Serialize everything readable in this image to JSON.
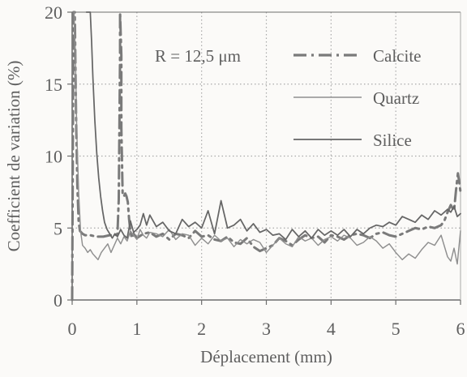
{
  "colors": {
    "background": "#fbfaf8",
    "axis": "#6d6d6d",
    "grid": "#a9a9a9",
    "calcite": "#7a7a7a",
    "quartz": "#8f8f8f",
    "silice": "#666666",
    "text": "#5e5e5e"
  },
  "chart_data": {
    "type": "line",
    "title": "",
    "xlabel": "Déplacement (mm)",
    "ylabel": "Coefficient de variation (%)",
    "xlim": [
      0,
      6
    ],
    "ylim": [
      0,
      20
    ],
    "x_ticks": [
      "0",
      "1",
      "2",
      "3",
      "4",
      "5",
      "6"
    ],
    "y_ticks": [
      "0",
      "5",
      "10",
      "15",
      "20"
    ],
    "annotation": "R = 12,5 μm",
    "grid": true,
    "legend_position": "upper-right",
    "series": [
      {
        "name": "Calcite",
        "style": "dash-dot",
        "x": [
          0.0,
          0.02,
          0.04,
          0.06,
          0.08,
          0.1,
          0.12,
          0.16,
          0.2,
          0.28,
          0.38,
          0.48,
          0.58,
          0.66,
          0.7,
          0.72,
          0.73,
          0.74,
          0.74,
          0.76,
          0.76,
          0.78,
          0.8,
          0.82,
          0.84,
          0.86,
          0.88,
          0.9,
          0.92,
          0.95,
          1.0,
          1.1,
          1.2,
          1.3,
          1.4,
          1.5,
          1.6,
          1.7,
          1.8,
          1.9,
          2.0,
          2.1,
          2.2,
          2.3,
          2.4,
          2.5,
          2.6,
          2.7,
          2.8,
          2.9,
          3.0,
          3.1,
          3.2,
          3.3,
          3.4,
          3.5,
          3.6,
          3.7,
          3.8,
          3.9,
          4.0,
          4.1,
          4.2,
          4.3,
          4.4,
          4.5,
          4.6,
          4.7,
          4.8,
          4.9,
          5.0,
          5.1,
          5.2,
          5.3,
          5.4,
          5.5,
          5.6,
          5.7,
          5.75,
          5.8,
          5.85,
          5.9,
          5.93,
          5.96,
          5.98,
          6.0
        ],
        "y": [
          0.0,
          20.0,
          20.0,
          13.0,
          8.0,
          5.5,
          4.8,
          4.6,
          4.5,
          4.5,
          4.4,
          4.4,
          4.5,
          4.5,
          4.6,
          7.0,
          12.0,
          17.0,
          20.0,
          17.0,
          12.0,
          7.3,
          7.2,
          7.4,
          7.2,
          6.8,
          5.6,
          4.8,
          4.3,
          4.6,
          4.3,
          4.6,
          4.7,
          4.4,
          4.6,
          4.2,
          4.6,
          4.5,
          4.3,
          4.8,
          4.4,
          4.5,
          4.2,
          4.1,
          4.4,
          4.0,
          3.9,
          4.3,
          3.7,
          3.4,
          3.6,
          3.8,
          4.3,
          4.1,
          3.8,
          4.2,
          4.5,
          4.3,
          4.4,
          4.0,
          4.5,
          4.4,
          4.2,
          4.5,
          4.6,
          4.5,
          4.3,
          4.6,
          4.7,
          4.5,
          4.4,
          4.6,
          4.8,
          5.0,
          4.9,
          5.1,
          5.0,
          5.2,
          5.5,
          6.1,
          6.6,
          6.2,
          7.6,
          8.8,
          8.2,
          7.5
        ]
      },
      {
        "name": "Quartz",
        "style": "solid",
        "x": [
          0.03,
          0.05,
          0.07,
          0.1,
          0.13,
          0.16,
          0.2,
          0.24,
          0.28,
          0.32,
          0.36,
          0.4,
          0.45,
          0.5,
          0.55,
          0.6,
          0.65,
          0.7,
          0.75,
          0.8,
          0.85,
          0.9,
          0.95,
          1.0,
          1.05,
          1.1,
          1.15,
          1.2,
          1.3,
          1.4,
          1.5,
          1.6,
          1.7,
          1.8,
          1.9,
          2.0,
          2.1,
          2.2,
          2.3,
          2.4,
          2.5,
          2.6,
          2.7,
          2.8,
          2.9,
          3.0,
          3.1,
          3.2,
          3.3,
          3.4,
          3.5,
          3.6,
          3.7,
          3.8,
          3.9,
          4.0,
          4.1,
          4.2,
          4.3,
          4.4,
          4.5,
          4.6,
          4.7,
          4.8,
          4.9,
          5.0,
          5.1,
          5.2,
          5.3,
          5.4,
          5.5,
          5.6,
          5.7,
          5.8,
          5.85,
          5.9,
          5.95,
          6.0
        ],
        "y": [
          20.0,
          17.0,
          12.0,
          7.5,
          4.8,
          3.8,
          3.6,
          3.3,
          3.5,
          3.2,
          3.0,
          2.8,
          3.3,
          3.6,
          3.9,
          3.3,
          3.8,
          4.3,
          3.9,
          4.4,
          4.1,
          4.8,
          4.5,
          4.2,
          4.9,
          4.5,
          4.3,
          4.7,
          4.6,
          4.4,
          4.9,
          4.2,
          4.6,
          4.5,
          3.8,
          4.3,
          3.9,
          4.5,
          4.1,
          4.3,
          3.7,
          4.2,
          3.9,
          4.2,
          4.0,
          3.3,
          3.8,
          4.3,
          3.9,
          3.7,
          4.4,
          4.1,
          4.3,
          3.8,
          4.2,
          4.4,
          4.1,
          4.5,
          4.3,
          3.8,
          4.0,
          4.4,
          4.1,
          3.6,
          3.9,
          3.3,
          2.8,
          3.2,
          2.9,
          3.5,
          4.0,
          3.8,
          4.5,
          3.0,
          2.7,
          3.6,
          2.5,
          4.8
        ]
      },
      {
        "name": "Silice",
        "style": "solid",
        "x": [
          0.22,
          0.24,
          0.26,
          0.28,
          0.3,
          0.32,
          0.35,
          0.38,
          0.41,
          0.44,
          0.47,
          0.5,
          0.54,
          0.58,
          0.62,
          0.66,
          0.7,
          0.75,
          0.8,
          0.85,
          0.9,
          0.95,
          1.0,
          1.05,
          1.1,
          1.15,
          1.2,
          1.3,
          1.4,
          1.5,
          1.6,
          1.7,
          1.8,
          1.9,
          2.0,
          2.1,
          2.2,
          2.3,
          2.4,
          2.5,
          2.6,
          2.7,
          2.8,
          2.9,
          3.0,
          3.1,
          3.2,
          3.3,
          3.4,
          3.5,
          3.6,
          3.7,
          3.8,
          3.9,
          4.0,
          4.1,
          4.2,
          4.3,
          4.4,
          4.5,
          4.6,
          4.7,
          4.8,
          4.9,
          5.0,
          5.1,
          5.2,
          5.3,
          5.4,
          5.5,
          5.6,
          5.7,
          5.8,
          5.85,
          5.9,
          5.95,
          6.0
        ],
        "y": [
          20.0,
          20.0,
          20.0,
          20.0,
          18.0,
          15.5,
          12.5,
          10.2,
          8.5,
          7.2,
          6.2,
          5.4,
          4.9,
          4.6,
          4.3,
          4.6,
          4.4,
          4.9,
          4.5,
          4.3,
          5.5,
          4.7,
          4.9,
          5.2,
          6.0,
          5.2,
          5.9,
          5.1,
          5.4,
          4.8,
          4.6,
          5.6,
          5.1,
          5.4,
          5.0,
          6.2,
          4.6,
          6.9,
          5.0,
          5.2,
          5.6,
          4.8,
          5.3,
          4.7,
          4.9,
          4.5,
          4.6,
          4.2,
          4.9,
          4.4,
          4.8,
          4.3,
          4.9,
          4.5,
          4.8,
          4.5,
          4.9,
          4.4,
          4.9,
          4.6,
          5.0,
          5.2,
          5.1,
          5.4,
          5.2,
          5.8,
          5.6,
          5.4,
          5.9,
          5.6,
          6.2,
          5.9,
          6.3,
          6.1,
          6.5,
          5.8,
          6.0
        ]
      }
    ]
  }
}
